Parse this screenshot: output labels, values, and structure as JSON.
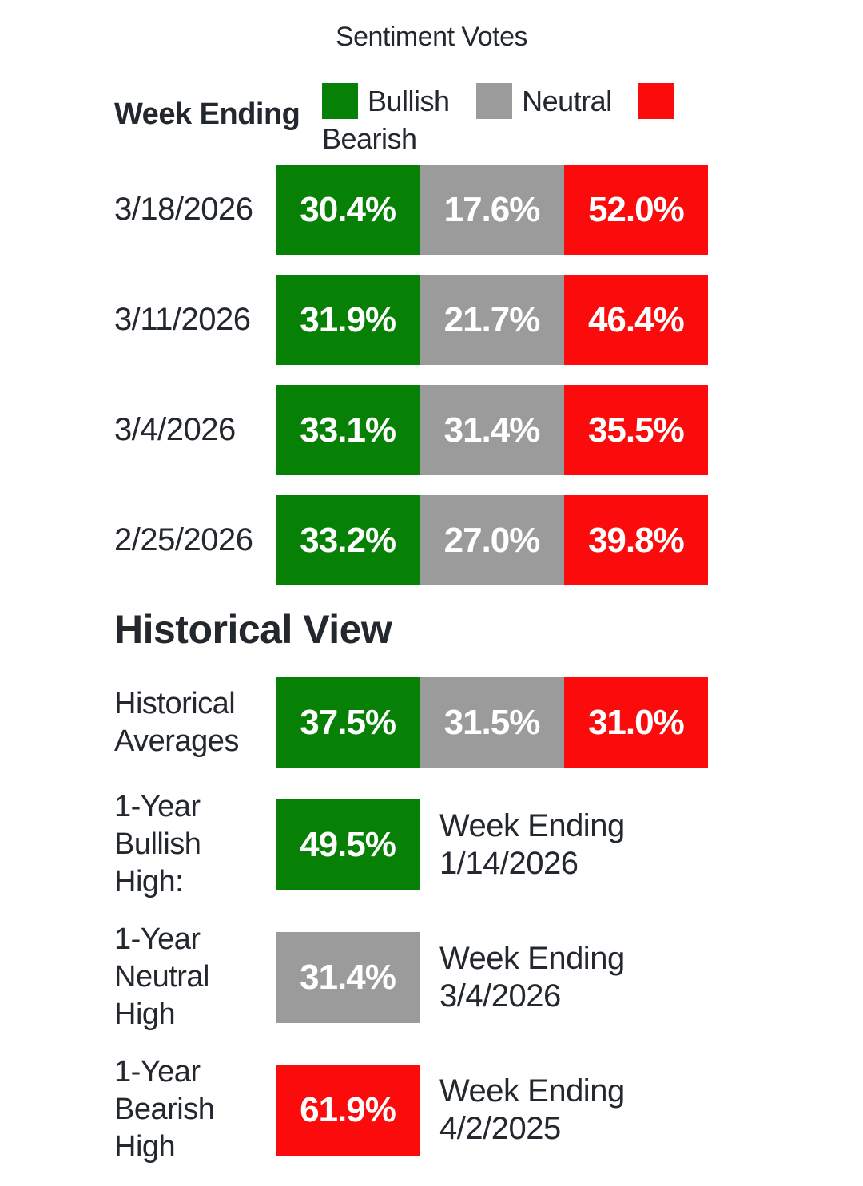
{
  "title": "Sentiment Votes",
  "header": {
    "week_ending_label": "Week Ending"
  },
  "legend": {
    "bullish": "Bullish",
    "neutral": "Neutral",
    "bearish": "Bearish"
  },
  "rows": [
    {
      "date": "3/18/2026",
      "bullish": "30.4%",
      "neutral": "17.6%",
      "bearish": "52.0%"
    },
    {
      "date": "3/11/2026",
      "bullish": "31.9%",
      "neutral": "21.7%",
      "bearish": "46.4%"
    },
    {
      "date": "3/4/2026",
      "bullish": "33.1%",
      "neutral": "31.4%",
      "bearish": "35.5%"
    },
    {
      "date": "2/25/2026",
      "bullish": "33.2%",
      "neutral": "27.0%",
      "bearish": "39.8%"
    }
  ],
  "historical": {
    "heading": "Historical View",
    "averages": {
      "label": "Historical Averages",
      "bullish": "37.5%",
      "neutral": "31.5%",
      "bearish": "31.0%"
    },
    "highs": [
      {
        "label": "1-Year Bullish High:",
        "value": "49.5%",
        "week": "Week Ending 1/14/2026",
        "color": "bullish"
      },
      {
        "label": "1-Year Neutral High",
        "value": "31.4%",
        "week": "Week Ending 3/4/2026",
        "color": "neutral"
      },
      {
        "label": "1-Year Bearish High",
        "value": "61.9%",
        "week": "Week Ending 4/2/2025",
        "color": "bearish"
      }
    ]
  },
  "colors": {
    "bullish": "#068106",
    "neutral": "#9b9b9b",
    "bearish": "#fb0b0b",
    "text": "#23272e"
  },
  "chart_data": {
    "type": "table",
    "title": "Sentiment Votes",
    "categories": [
      "Bullish",
      "Neutral",
      "Bearish"
    ],
    "legend_position": "top",
    "series": [
      {
        "name": "3/18/2026",
        "values": [
          30.4,
          17.6,
          52.0
        ]
      },
      {
        "name": "3/11/2026",
        "values": [
          31.9,
          21.7,
          46.4
        ]
      },
      {
        "name": "3/4/2026",
        "values": [
          33.1,
          31.4,
          35.5
        ]
      },
      {
        "name": "2/25/2026",
        "values": [
          33.2,
          27.0,
          39.8
        ]
      }
    ],
    "historical_averages": {
      "bullish": 37.5,
      "neutral": 31.5,
      "bearish": 31.0
    },
    "one_year_highs": [
      {
        "sentiment": "Bullish",
        "value": 49.5,
        "week_ending": "1/14/2026"
      },
      {
        "sentiment": "Neutral",
        "value": 31.4,
        "week_ending": "3/4/2026"
      },
      {
        "sentiment": "Bearish",
        "value": 61.9,
        "week_ending": "4/2/2025"
      }
    ],
    "unit": "percent"
  }
}
